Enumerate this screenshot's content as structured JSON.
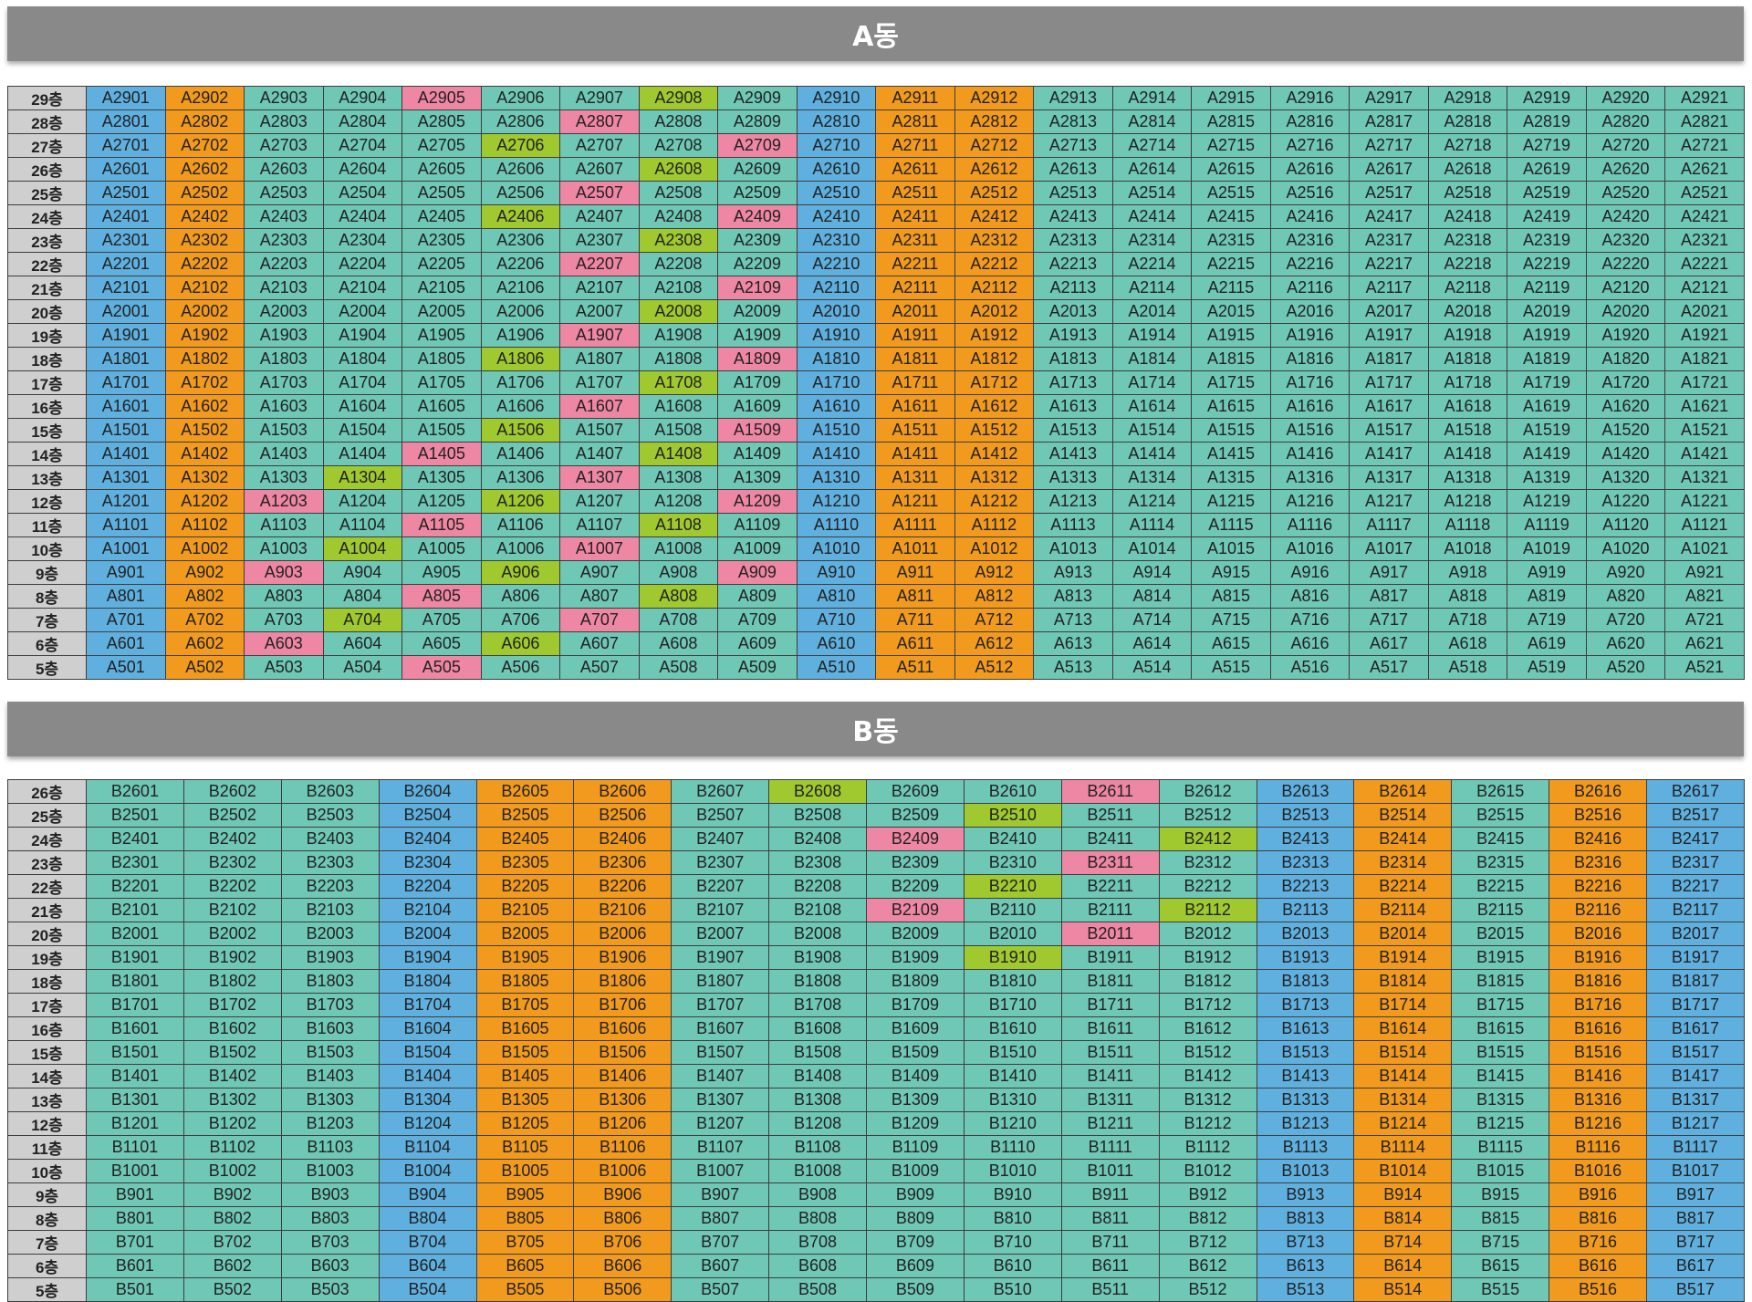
{
  "colors": {
    "t": "#6fc7b6",
    "b": "#5fb0df",
    "o": "#f29a1e",
    "p": "#ee87a3",
    "g": "#9fc92f",
    "floor_label_bg": "#cfcfcf",
    "title_bar_bg": "#898989"
  },
  "color_legend": {
    "t": "teal",
    "b": "blue",
    "o": "orange",
    "p": "pink",
    "g": "green"
  },
  "building_a": {
    "title": "A동",
    "floors": [
      29,
      28,
      27,
      26,
      25,
      24,
      23,
      22,
      21,
      20,
      19,
      18,
      17,
      16,
      15,
      14,
      13,
      12,
      11,
      10,
      9,
      8,
      7,
      6,
      5
    ],
    "units_per_floor": 21,
    "unit_prefix": "A",
    "floor_suffix": "층",
    "base_colors": [
      "b",
      "o",
      "t",
      "t",
      "t",
      "t",
      "t",
      "t",
      "t",
      "b",
      "o",
      "o",
      "t",
      "t",
      "t",
      "t",
      "t",
      "t",
      "t",
      "t",
      "t"
    ],
    "highlights": {
      "29": {
        "5": "p",
        "8": "g"
      },
      "28": {
        "7": "p"
      },
      "27": {
        "6": "g",
        "9": "p"
      },
      "26": {
        "8": "g"
      },
      "25": {
        "7": "p"
      },
      "24": {
        "6": "g",
        "9": "p"
      },
      "23": {
        "8": "g"
      },
      "22": {
        "7": "p"
      },
      "21": {
        "9": "p"
      },
      "20": {
        "8": "g"
      },
      "19": {
        "7": "p"
      },
      "18": {
        "6": "g",
        "9": "p"
      },
      "17": {
        "8": "g"
      },
      "16": {
        "7": "p"
      },
      "15": {
        "6": "g",
        "9": "p"
      },
      "14": {
        "5": "p",
        "8": "g"
      },
      "13": {
        "4": "g",
        "7": "p"
      },
      "12": {
        "3": "p",
        "6": "g",
        "9": "p"
      },
      "11": {
        "5": "p",
        "8": "g"
      },
      "10": {
        "4": "g",
        "7": "p"
      },
      "9": {
        "3": "p",
        "6": "g",
        "9": "p"
      },
      "8": {
        "5": "p",
        "8": "g"
      },
      "7": {
        "4": "g",
        "7": "p"
      },
      "6": {
        "3": "p",
        "6": "g"
      },
      "5": {
        "5": "p"
      }
    }
  },
  "building_b": {
    "title": "B동",
    "floors": [
      26,
      25,
      24,
      23,
      22,
      21,
      20,
      19,
      18,
      17,
      16,
      15,
      14,
      13,
      12,
      11,
      10,
      9,
      8,
      7,
      6,
      5
    ],
    "units_per_floor": 17,
    "unit_prefix": "B",
    "floor_suffix": "층",
    "base_colors": [
      "t",
      "t",
      "t",
      "b",
      "o",
      "o",
      "t",
      "t",
      "t",
      "t",
      "t",
      "t",
      "b",
      "o",
      "t",
      "o",
      "b"
    ],
    "highlights": {
      "26": {
        "8": "g",
        "11": "p"
      },
      "25": {
        "10": "g"
      },
      "24": {
        "9": "p",
        "12": "g"
      },
      "23": {
        "11": "p"
      },
      "22": {
        "10": "g"
      },
      "21": {
        "9": "p",
        "12": "g"
      },
      "20": {
        "11": "p"
      },
      "19": {
        "10": "g"
      }
    }
  }
}
